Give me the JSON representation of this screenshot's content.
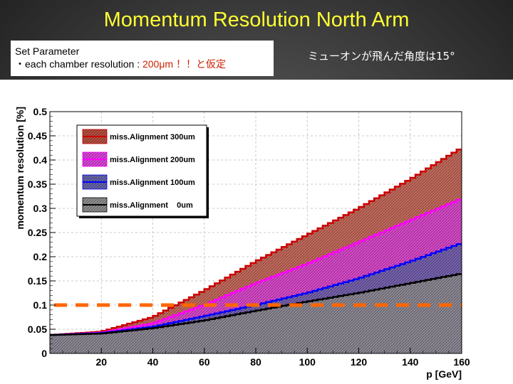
{
  "slide": {
    "title": "Momentum Resolution North Arm",
    "param_heading": "Set Parameter",
    "param_line_prefix": "・each chamber resolution : ",
    "param_line_value": "200μm ！！と仮定",
    "note": "ミューオンが飛んだ角度は15°"
  },
  "chart_data": {
    "type": "area",
    "x": [
      0,
      20,
      40,
      60,
      80,
      100,
      120,
      140,
      160
    ],
    "xlabel": "p [GeV]",
    "ylabel": "momentum resolution [%]",
    "xlim": [
      0,
      160
    ],
    "ylim": [
      0,
      0.5
    ],
    "xticks": [
      20,
      40,
      60,
      80,
      100,
      120,
      140,
      160
    ],
    "xtick_labels": [
      "20",
      "40",
      "60",
      "80",
      "100",
      "120",
      "140",
      "160"
    ],
    "yticks": [
      0,
      0.05,
      0.1,
      0.15,
      0.2,
      0.25,
      0.3,
      0.35,
      0.4,
      0.45,
      0.5
    ],
    "ytick_labels": [
      "0",
      "0.05",
      "0.1",
      "0.15",
      "0.2",
      "0.25",
      "0.3",
      "0.35",
      "0.4",
      "0.45",
      "0.5"
    ],
    "grid": true,
    "legend_position": "top-left",
    "series": [
      {
        "name": "miss.Alignment 300um",
        "color": "#cc0000",
        "fill": "#b85040",
        "values": [
          0.038,
          0.045,
          0.075,
          0.13,
          0.19,
          0.245,
          0.3,
          0.36,
          0.425
        ]
      },
      {
        "name": "miss.Alignment 200um",
        "color": "#ff00ff",
        "fill": "#dd44dd",
        "values": [
          0.038,
          0.043,
          0.062,
          0.1,
          0.145,
          0.185,
          0.23,
          0.275,
          0.32
        ]
      },
      {
        "name": "miss.Alignment 100um",
        "color": "#0000ff",
        "fill": "#6666aa",
        "values": [
          0.038,
          0.042,
          0.055,
          0.077,
          0.1,
          0.125,
          0.155,
          0.19,
          0.228
        ]
      },
      {
        "name": "miss.Alignment    0um",
        "color": "#000000",
        "fill": "#909090",
        "values": [
          0.038,
          0.041,
          0.052,
          0.068,
          0.088,
          0.107,
          0.125,
          0.145,
          0.165
        ]
      }
    ],
    "reference_line": {
      "y": 0.1,
      "color": "#ff6600"
    }
  }
}
